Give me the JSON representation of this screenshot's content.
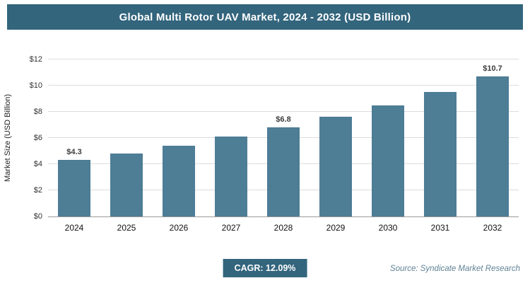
{
  "header": {
    "title": "Global Multi Rotor UAV Market, 2024 - 2032 (USD Billion)"
  },
  "chart_data": {
    "type": "bar",
    "title": "Global Multi Rotor UAV Market, 2024 - 2032 (USD Billion)",
    "categories": [
      "2024",
      "2025",
      "2026",
      "2027",
      "2028",
      "2029",
      "2030",
      "2031",
      "2032"
    ],
    "values": [
      4.3,
      4.8,
      5.4,
      6.1,
      6.8,
      7.6,
      8.5,
      9.5,
      10.7
    ],
    "data_labels": [
      "$4.3",
      null,
      null,
      null,
      "$6.8",
      null,
      null,
      null,
      "$10.7"
    ],
    "xlabel": "",
    "ylabel": "Market Size (USD Billion)",
    "ylim": [
      0,
      12
    ],
    "yticks": [
      0,
      2,
      4,
      6,
      8,
      10,
      12
    ],
    "ytick_labels": [
      "$0",
      "$2",
      "$4",
      "$6",
      "$8",
      "$10",
      "$12"
    ],
    "grid": true,
    "legend": false
  },
  "footer": {
    "cagr_label": "CAGR: 12.09%",
    "source": "Source: Syndicate Market Research"
  },
  "colors": {
    "banner": "#33657d",
    "bar": "#4e7d96",
    "grid": "#dcdcdc",
    "badge": "#33657d"
  }
}
